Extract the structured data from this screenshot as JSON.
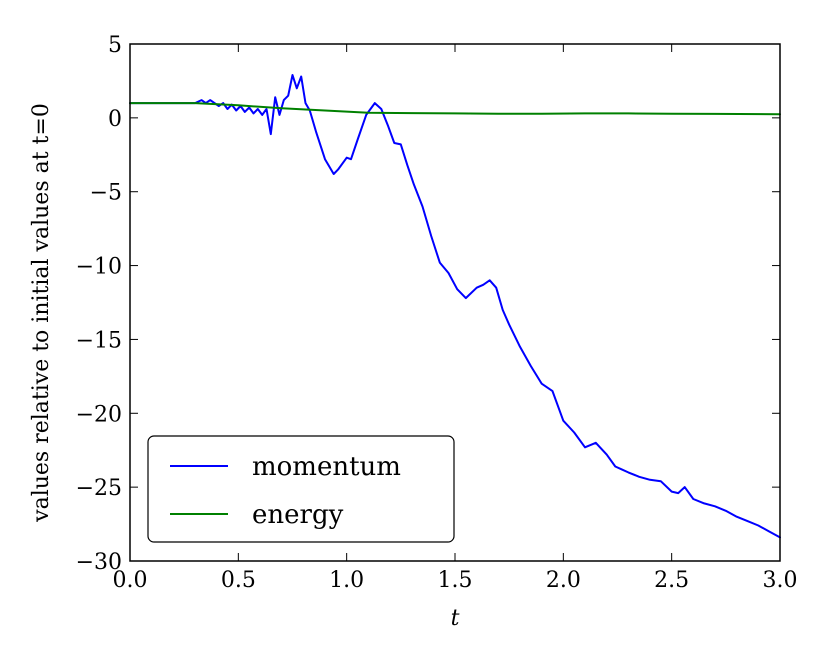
{
  "chart_data": {
    "type": "line",
    "title": "",
    "xlabel": "t",
    "ylabel": "values relative to initial values at t=0",
    "xlim": [
      0.0,
      3.0
    ],
    "ylim": [
      -30,
      5
    ],
    "xticks": [
      0.0,
      0.5,
      1.0,
      1.5,
      2.0,
      2.5,
      3.0
    ],
    "xtick_labels": [
      "0.0",
      "0.5",
      "1.0",
      "1.5",
      "2.0",
      "2.5",
      "3.0"
    ],
    "yticks": [
      5,
      0,
      -5,
      -10,
      -15,
      -20,
      -25,
      -30
    ],
    "ytick_labels": [
      "5",
      "0",
      "−5",
      "−10",
      "−15",
      "−20",
      "−25",
      "−30"
    ],
    "grid": false,
    "legend_position": "lower-left",
    "series": [
      {
        "name": "momentum",
        "color": "#0000ff",
        "x": [
          0.0,
          0.1,
          0.2,
          0.3,
          0.33,
          0.35,
          0.37,
          0.39,
          0.41,
          0.43,
          0.45,
          0.47,
          0.49,
          0.51,
          0.53,
          0.55,
          0.57,
          0.59,
          0.61,
          0.63,
          0.65,
          0.67,
          0.69,
          0.71,
          0.73,
          0.75,
          0.77,
          0.79,
          0.81,
          0.83,
          0.86,
          0.9,
          0.94,
          0.96,
          1.0,
          1.02,
          1.05,
          1.09,
          1.13,
          1.16,
          1.19,
          1.22,
          1.25,
          1.28,
          1.31,
          1.35,
          1.39,
          1.43,
          1.47,
          1.51,
          1.55,
          1.6,
          1.63,
          1.66,
          1.69,
          1.72,
          1.75,
          1.8,
          1.85,
          1.9,
          1.95,
          2.0,
          2.05,
          2.1,
          2.15,
          2.2,
          2.24,
          2.27,
          2.3,
          2.35,
          2.4,
          2.45,
          2.5,
          2.53,
          2.56,
          2.6,
          2.65,
          2.7,
          2.75,
          2.8,
          2.85,
          2.9,
          2.95,
          3.0
        ],
        "values": [
          1.0,
          1.0,
          1.0,
          1.0,
          1.2,
          1.0,
          1.2,
          1.0,
          0.8,
          1.0,
          0.6,
          0.9,
          0.5,
          0.8,
          0.4,
          0.7,
          0.3,
          0.6,
          0.2,
          0.6,
          -1.1,
          1.4,
          0.2,
          1.2,
          1.5,
          2.9,
          2.0,
          2.8,
          1.0,
          0.5,
          -1.0,
          -2.8,
          -3.8,
          -3.5,
          -2.7,
          -2.8,
          -1.5,
          0.2,
          1.0,
          0.6,
          -0.5,
          -1.7,
          -1.8,
          -3.2,
          -4.5,
          -6.0,
          -8.0,
          -9.8,
          -10.5,
          -11.6,
          -12.2,
          -11.5,
          -11.3,
          -11.0,
          -11.5,
          -13.0,
          -14.0,
          -15.5,
          -16.8,
          -18.0,
          -18.5,
          -20.5,
          -21.3,
          -22.3,
          -22.0,
          -22.8,
          -23.6,
          -23.8,
          -24.0,
          -24.3,
          -24.5,
          -24.6,
          -25.3,
          -25.4,
          -25.0,
          -25.8,
          -26.1,
          -26.3,
          -26.6,
          -27.0,
          -27.3,
          -27.6,
          -28.0,
          -28.4
        ]
      },
      {
        "name": "energy",
        "color": "#008000",
        "x": [
          0.0,
          0.3,
          0.5,
          0.7,
          0.9,
          1.1,
          1.3,
          1.5,
          1.7,
          1.9,
          2.1,
          2.3,
          2.5,
          2.7,
          3.0
        ],
        "values": [
          1.0,
          1.0,
          0.85,
          0.65,
          0.5,
          0.35,
          0.32,
          0.3,
          0.28,
          0.28,
          0.3,
          0.3,
          0.28,
          0.27,
          0.25
        ]
      }
    ]
  }
}
